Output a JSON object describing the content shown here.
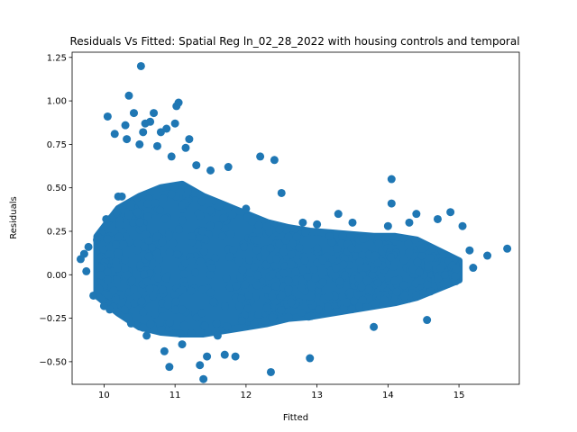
{
  "chart_data": {
    "type": "scatter",
    "title": "Residuals Vs Fitted: Spatial Reg ln_02_28_2022 with housing controls and temporal",
    "xlabel": "Fitted",
    "ylabel": "Residuals",
    "xlim": [
      9.55,
      15.85
    ],
    "ylim": [
      -0.63,
      1.28
    ],
    "xticks": [
      10,
      11,
      12,
      13,
      14,
      15
    ],
    "yticks": [
      -0.5,
      -0.25,
      0.0,
      0.25,
      0.5,
      0.75,
      1.0,
      1.25
    ],
    "ytick_labels": [
      "−0.50",
      "−0.25",
      "0.00",
      "0.25",
      "0.50",
      "0.75",
      "1.00",
      "1.25"
    ],
    "grid": false,
    "marker_color": "#1f77b4",
    "series": [
      {
        "points": [
          [
            9.67,
            0.09
          ],
          [
            9.72,
            0.12
          ],
          [
            9.75,
            0.02
          ],
          [
            9.78,
            0.16
          ],
          [
            9.85,
            -0.12
          ],
          [
            9.9,
            0.2
          ],
          [
            9.93,
            -0.08
          ],
          [
            9.95,
            0.04
          ],
          [
            10.0,
            -0.18
          ],
          [
            10.03,
            0.32
          ],
          [
            10.05,
            0.91
          ],
          [
            10.08,
            -0.2
          ],
          [
            10.15,
            0.81
          ],
          [
            10.2,
            0.45
          ],
          [
            10.25,
            0.45
          ],
          [
            10.3,
            0.86
          ],
          [
            10.32,
            0.78
          ],
          [
            10.35,
            1.03
          ],
          [
            10.38,
            -0.28
          ],
          [
            10.42,
            0.93
          ],
          [
            10.47,
            0.36
          ],
          [
            10.5,
            0.75
          ],
          [
            10.52,
            1.2
          ],
          [
            10.55,
            0.82
          ],
          [
            10.58,
            0.87
          ],
          [
            10.6,
            -0.35
          ],
          [
            10.65,
            0.88
          ],
          [
            10.7,
            0.93
          ],
          [
            10.75,
            0.74
          ],
          [
            10.8,
            0.82
          ],
          [
            10.85,
            -0.44
          ],
          [
            10.88,
            0.84
          ],
          [
            10.92,
            -0.53
          ],
          [
            10.95,
            0.68
          ],
          [
            11.0,
            0.87
          ],
          [
            11.02,
            0.97
          ],
          [
            11.05,
            0.99
          ],
          [
            11.1,
            -0.4
          ],
          [
            11.15,
            0.73
          ],
          [
            11.2,
            0.78
          ],
          [
            11.3,
            0.63
          ],
          [
            11.35,
            -0.52
          ],
          [
            11.4,
            -0.6
          ],
          [
            11.45,
            -0.47
          ],
          [
            11.5,
            0.6
          ],
          [
            11.6,
            -0.35
          ],
          [
            11.7,
            -0.46
          ],
          [
            11.75,
            0.62
          ],
          [
            11.85,
            -0.47
          ],
          [
            12.0,
            0.38
          ],
          [
            12.2,
            0.68
          ],
          [
            12.35,
            -0.56
          ],
          [
            12.4,
            0.66
          ],
          [
            12.5,
            0.47
          ],
          [
            12.6,
            0.22
          ],
          [
            12.8,
            0.3
          ],
          [
            12.9,
            -0.48
          ],
          [
            13.0,
            0.29
          ],
          [
            13.3,
            0.35
          ],
          [
            13.5,
            0.3
          ],
          [
            13.8,
            -0.3
          ],
          [
            14.0,
            0.28
          ],
          [
            14.05,
            0.55
          ],
          [
            14.05,
            0.41
          ],
          [
            14.3,
            0.3
          ],
          [
            14.4,
            0.35
          ],
          [
            14.55,
            -0.26
          ],
          [
            14.7,
            0.32
          ],
          [
            14.88,
            0.36
          ],
          [
            14.95,
            -0.01
          ],
          [
            15.05,
            0.28
          ],
          [
            15.15,
            0.14
          ],
          [
            15.2,
            0.04
          ],
          [
            15.4,
            0.11
          ],
          [
            15.68,
            0.15
          ]
        ]
      }
    ]
  }
}
